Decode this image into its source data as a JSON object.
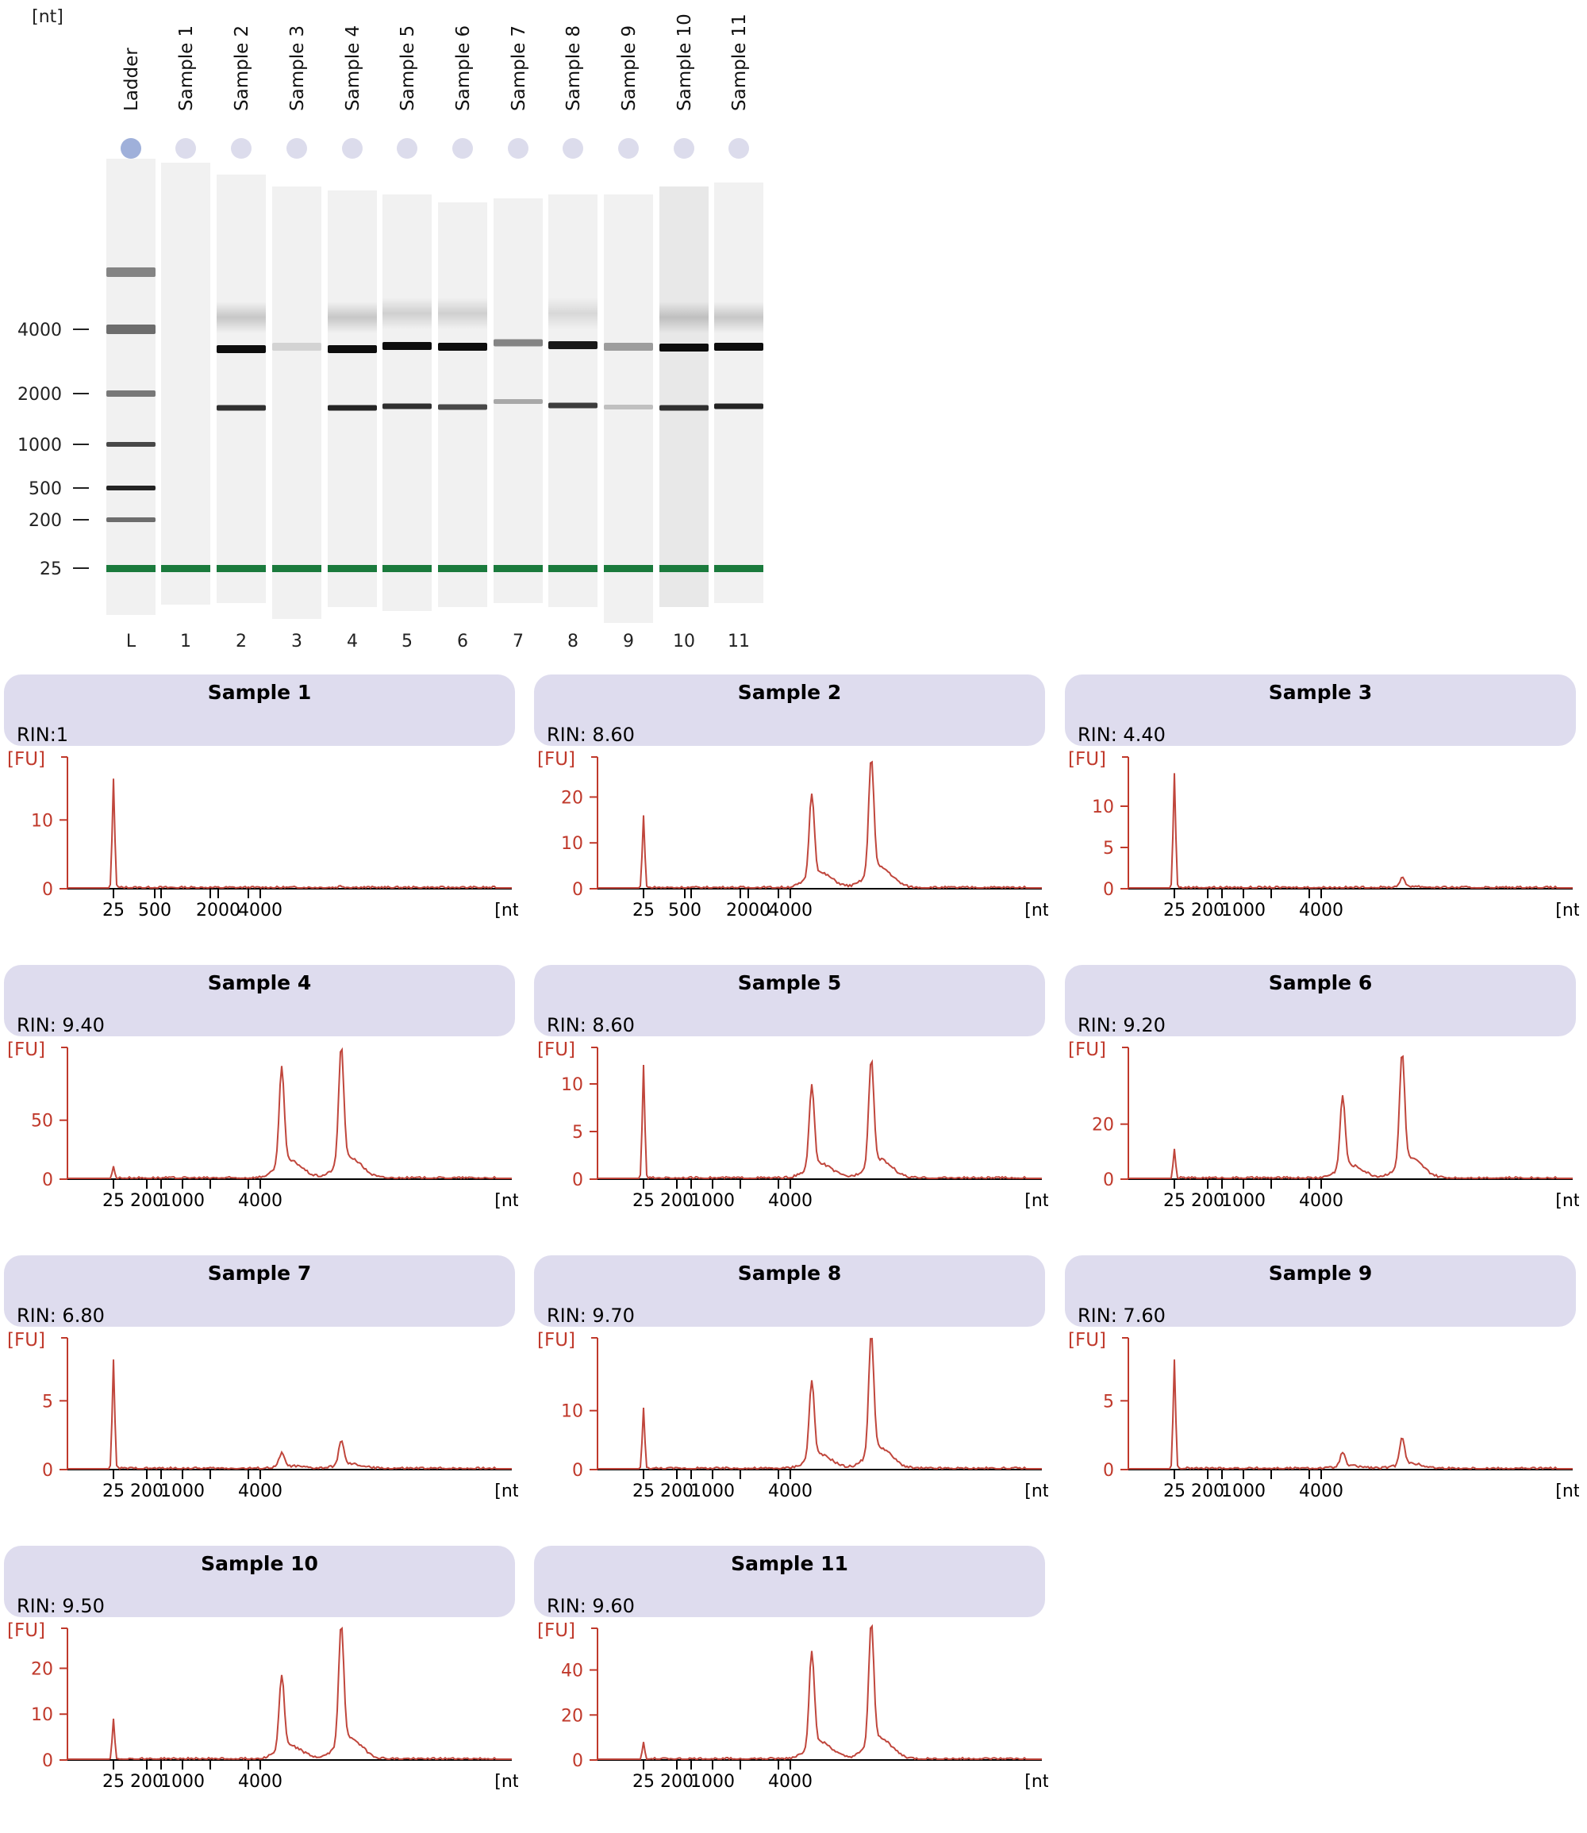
{
  "gel": {
    "unit": "[nt]",
    "lane_headers": [
      "Ladder",
      "Sample 1",
      "Sample 2",
      "Sample 3",
      "Sample 4",
      "Sample 5",
      "Sample 6",
      "Sample 7",
      "Sample 8",
      "Sample 9",
      "Sample 10",
      "Sample 11"
    ],
    "lane_numbers": [
      "L",
      "1",
      "2",
      "3",
      "4",
      "5",
      "6",
      "7",
      "8",
      "9",
      "10",
      "11"
    ],
    "size_markers": [
      "4000",
      "2000",
      "1000",
      "500",
      "200",
      "25"
    ]
  },
  "colors": {
    "trace": "#c0463c",
    "axis_red": "#c0392b",
    "header_bg": "#dedcee",
    "marker_green": "#1a7a3c",
    "ladder_dot": "#9fb0da",
    "sample_dot": "#dcdcec"
  },
  "chart_data": [
    {
      "type": "line",
      "title": "Sample 1",
      "rin": "RIN:1",
      "ylabel": "[FU]",
      "xlabel": "[nt]",
      "yticks": [
        0,
        10
      ],
      "ylim": [
        0,
        18
      ],
      "xticks": [
        "25",
        "500",
        "2000",
        "4000"
      ],
      "peaks": [
        [
          25,
          16
        ],
        [
          4000,
          0.2
        ]
      ]
    },
    {
      "type": "line",
      "title": "Sample 2",
      "rin": "RIN: 8.60",
      "ylabel": "[FU]",
      "xlabel": "[nt]",
      "yticks": [
        0,
        10,
        20
      ],
      "ylim": [
        0,
        27
      ],
      "xticks": [
        "25",
        "500",
        "2000",
        "4000"
      ],
      "peaks": [
        [
          25,
          16
        ],
        [
          2000,
          18
        ],
        [
          4000,
          25
        ]
      ]
    },
    {
      "type": "line",
      "title": "Sample 3",
      "rin": "RIN: 4.40",
      "ylabel": "[FU]",
      "xlabel": "[nt]",
      "yticks": [
        0,
        5,
        10
      ],
      "ylim": [
        0,
        15
      ],
      "xticks": [
        "25",
        "200",
        "1000",
        "4000"
      ],
      "peaks": [
        [
          25,
          14
        ],
        [
          4000,
          1
        ]
      ]
    },
    {
      "type": "line",
      "title": "Sample 4",
      "rin": "RIN: 9.40",
      "ylabel": "[FU]",
      "xlabel": "[nt]",
      "yticks": [
        0,
        50
      ],
      "ylim": [
        0,
        105
      ],
      "xticks": [
        "25",
        "200",
        "1000",
        "4000"
      ],
      "peaks": [
        [
          25,
          11
        ],
        [
          2000,
          82
        ],
        [
          4000,
          98
        ]
      ]
    },
    {
      "type": "line",
      "title": "Sample 5",
      "rin": "RIN: 8.60",
      "ylabel": "[FU]",
      "xlabel": "[nt]",
      "yticks": [
        0,
        5,
        10
      ],
      "ylim": [
        0,
        13
      ],
      "xticks": [
        "25",
        "200",
        "1000",
        "4000"
      ],
      "peaks": [
        [
          25,
          12
        ],
        [
          2000,
          8.5
        ],
        [
          4000,
          11
        ]
      ]
    },
    {
      "type": "line",
      "title": "Sample 6",
      "rin": "RIN: 9.20",
      "ylabel": "[FU]",
      "xlabel": "[nt]",
      "yticks": [
        0,
        20
      ],
      "ylim": [
        0,
        45
      ],
      "xticks": [
        "25",
        "200",
        "1000",
        "4000"
      ],
      "peaks": [
        [
          25,
          11
        ],
        [
          2000,
          26
        ],
        [
          4000,
          40
        ]
      ]
    },
    {
      "type": "line",
      "title": "Sample 7",
      "rin": "RIN: 6.80",
      "ylabel": "[FU]",
      "xlabel": "[nt]",
      "yticks": [
        0,
        5
      ],
      "ylim": [
        0,
        9
      ],
      "xticks": [
        "25",
        "200",
        "1000",
        "4000"
      ],
      "peaks": [
        [
          25,
          8
        ],
        [
          2000,
          1
        ],
        [
          4000,
          1.8
        ]
      ]
    },
    {
      "type": "line",
      "title": "Sample 8",
      "rin": "RIN: 9.70",
      "ylabel": "[FU]",
      "xlabel": "[nt]",
      "yticks": [
        0,
        10
      ],
      "ylim": [
        0,
        21
      ],
      "xticks": [
        "25",
        "200",
        "1000",
        "4000"
      ],
      "peaks": [
        [
          25,
          10.5
        ],
        [
          2000,
          13
        ],
        [
          4000,
          20
        ]
      ]
    },
    {
      "type": "line",
      "title": "Sample 9",
      "rin": "RIN: 7.60",
      "ylabel": "[FU]",
      "xlabel": "[nt]",
      "yticks": [
        0,
        5
      ],
      "ylim": [
        0,
        9
      ],
      "xticks": [
        "25",
        "200",
        "1000",
        "4000"
      ],
      "peaks": [
        [
          25,
          8
        ],
        [
          2000,
          1
        ],
        [
          4000,
          2
        ]
      ]
    },
    {
      "type": "line",
      "title": "Sample 10",
      "rin": "RIN: 9.50",
      "ylabel": "[FU]",
      "xlabel": "[nt]",
      "yticks": [
        0,
        10,
        20
      ],
      "ylim": [
        0,
        27
      ],
      "xticks": [
        "25",
        "200",
        "1000",
        "4000"
      ],
      "peaks": [
        [
          25,
          9
        ],
        [
          2000,
          16
        ],
        [
          4000,
          26
        ]
      ]
    },
    {
      "type": "line",
      "title": "Sample 11",
      "rin": "RIN: 9.60",
      "ylabel": "[FU]",
      "xlabel": "[nt]",
      "yticks": [
        0,
        20,
        40
      ],
      "ylim": [
        0,
        55
      ],
      "xticks": [
        "25",
        "200",
        "1000",
        "4000"
      ],
      "peaks": [
        [
          25,
          8
        ],
        [
          2000,
          42
        ],
        [
          4000,
          53
        ]
      ]
    }
  ]
}
